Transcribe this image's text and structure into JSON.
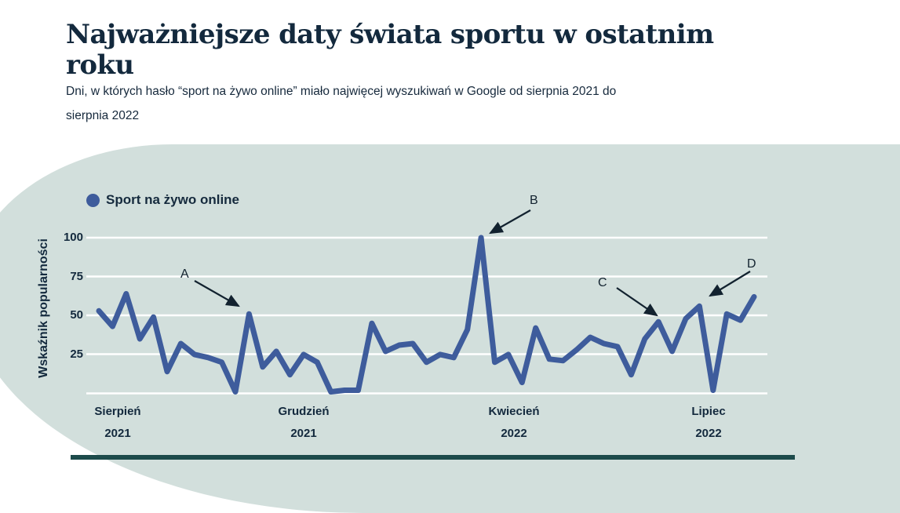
{
  "page": {
    "title": "Najważniejsze daty świata sportu w ostatnim roku",
    "title_line1": "Najważniejsze daty świata sportu w ostatnim",
    "title_line2": "roku",
    "subtitle": "Dni, w których hasło “sport na żywo online” miało najwięcej wyszukiwań w Google od sierpnia 2021 do sierpnia 2022",
    "subtitle_line1": "Dni, w których hasło “sport na żywo online” miało najwięcej wyszukiwań w Google od sierpnia 2021 do",
    "subtitle_line2": "sierpnia 2022"
  },
  "legend": {
    "label": "Sport na żywo online"
  },
  "chart_data": {
    "type": "line",
    "series_name": "Sport na żywo online",
    "ylabel": "Wskaźnik popularności",
    "ylim": [
      0,
      100
    ],
    "ytick_labels": [
      "100",
      "75",
      "50",
      "25"
    ],
    "ytick_values": [
      100,
      75,
      50,
      25
    ],
    "grid": true,
    "x_range_note": "weekly points, sierpień 2021 – sierpień 2022",
    "xticks": [
      {
        "line1": "Sierpień",
        "line2": "2021"
      },
      {
        "line1": "Grudzień",
        "line2": "2021"
      },
      {
        "line1": "Kwiecień",
        "line2": "2022"
      },
      {
        "line1": "Lipiec",
        "line2": "2022"
      }
    ],
    "values": [
      53,
      43,
      64,
      35,
      49,
      14,
      32,
      25,
      23,
      20,
      1,
      51,
      17,
      27,
      12,
      25,
      20,
      1,
      2,
      2,
      45,
      27,
      31,
      32,
      20,
      25,
      23,
      41,
      100,
      20,
      25,
      7,
      42,
      22,
      21,
      28,
      36,
      32,
      30,
      12,
      35,
      46,
      27,
      48,
      56,
      2,
      51,
      47,
      62
    ],
    "annotations": [
      {
        "label": "A",
        "index": 11,
        "value": 51
      },
      {
        "label": "B",
        "index": 28,
        "value": 100
      },
      {
        "label": "C",
        "index": 41,
        "value": 46
      },
      {
        "label": "D",
        "index": 44,
        "value": 56
      }
    ],
    "line_color": "#3e5c9c",
    "gridline_color": "#ffffff",
    "background_color": "#d2dfdc",
    "annotation_color": "#12222f",
    "accent_teal": "#1d4b4b",
    "text_color": "#13293d"
  }
}
